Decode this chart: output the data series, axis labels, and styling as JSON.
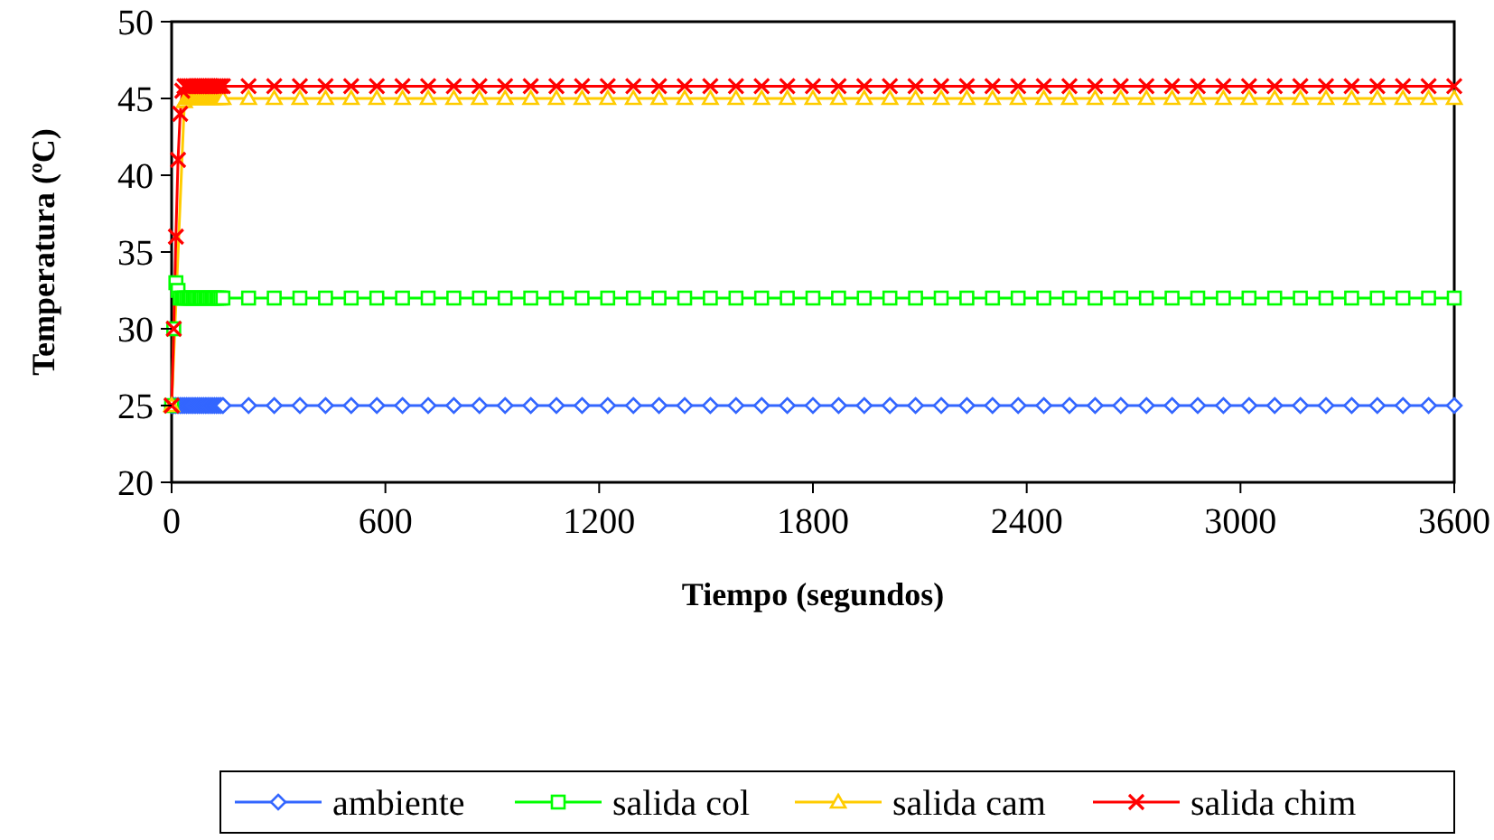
{
  "chart_data": {
    "type": "line",
    "xlabel": "Tiempo (segundos)",
    "ylabel": "Temperatura (ºC)",
    "x": [
      0,
      6,
      12,
      18,
      24,
      30,
      36,
      42,
      48,
      54,
      60,
      66,
      72,
      78,
      84,
      90,
      96,
      102,
      108,
      114,
      120,
      126,
      132,
      138,
      144,
      216,
      288,
      360,
      432,
      504,
      576,
      648,
      720,
      792,
      864,
      936,
      1008,
      1080,
      1152,
      1224,
      1296,
      1368,
      1440,
      1512,
      1584,
      1656,
      1728,
      1800,
      1872,
      1944,
      2016,
      2088,
      2160,
      2232,
      2304,
      2376,
      2448,
      2520,
      2592,
      2664,
      2736,
      2808,
      2880,
      2952,
      3024,
      3096,
      3168,
      3240,
      3312,
      3384,
      3456,
      3528,
      3600
    ],
    "xlim": [
      0,
      3600
    ],
    "xticks": [
      0,
      600,
      1200,
      1800,
      2400,
      3000,
      3600
    ],
    "ylim": [
      20,
      50
    ],
    "yticks": [
      20,
      25,
      30,
      35,
      40,
      45,
      50
    ],
    "grid": false,
    "legend": "bottom",
    "line_style": "solid",
    "series": [
      {
        "name": "ambiente",
        "color": "#3366ff",
        "marker": "diamond",
        "values": [
          25,
          25,
          25,
          25,
          25,
          25,
          25,
          25,
          25,
          25,
          25,
          25,
          25,
          25,
          25,
          25,
          25,
          25,
          25,
          25,
          25,
          25,
          25,
          25,
          25,
          25,
          25,
          25,
          25,
          25,
          25,
          25,
          25,
          25,
          25,
          25,
          25,
          25,
          25,
          25,
          25,
          25,
          25,
          25,
          25,
          25,
          25,
          25,
          25,
          25,
          25,
          25,
          25,
          25,
          25,
          25,
          25,
          25,
          25,
          25,
          25,
          25,
          25,
          25,
          25,
          25,
          25,
          25,
          25,
          25,
          25,
          25,
          25
        ]
      },
      {
        "name": "salida col",
        "color": "#00ff00",
        "marker": "square",
        "values": [
          25,
          30,
          33,
          32.5,
          32,
          32,
          32,
          32,
          32,
          32,
          32,
          32,
          32,
          32,
          32,
          32,
          32,
          32,
          32,
          32,
          32,
          32,
          32,
          32,
          32,
          32,
          32,
          32,
          32,
          32,
          32,
          32,
          32,
          32,
          32,
          32,
          32,
          32,
          32,
          32,
          32,
          32,
          32,
          32,
          32,
          32,
          32,
          32,
          32,
          32,
          32,
          32,
          32,
          32,
          32,
          32,
          32,
          32,
          32,
          32,
          32,
          32,
          32,
          32,
          32,
          32,
          32,
          32,
          32,
          32,
          32,
          32,
          32
        ]
      },
      {
        "name": "salida cam",
        "color": "#ffcc00",
        "marker": "triangle",
        "values": [
          25,
          null,
          null,
          null,
          null,
          null,
          44.8,
          45,
          45,
          45,
          45,
          45,
          45,
          45,
          45,
          45,
          45,
          45,
          45,
          45,
          45,
          45,
          45,
          45,
          45,
          45,
          45,
          45,
          45,
          45,
          45,
          45,
          45,
          45,
          45,
          45,
          45,
          45,
          45,
          45,
          45,
          45,
          45,
          45,
          45,
          45,
          45,
          45,
          45,
          45,
          45,
          45,
          45,
          45,
          45,
          45,
          45,
          45,
          45,
          45,
          45,
          45,
          45,
          45,
          45,
          45,
          45,
          45,
          45,
          45,
          45,
          45,
          45
        ]
      },
      {
        "name": "salida chim",
        "color": "#ff0000",
        "marker": "cross",
        "values": [
          25,
          30,
          36,
          41,
          44,
          45.5,
          45.8,
          45.8,
          45.8,
          45.8,
          45.8,
          45.8,
          45.8,
          45.8,
          45.8,
          45.8,
          45.8,
          45.8,
          45.8,
          45.8,
          45.8,
          45.8,
          45.8,
          45.8,
          45.8,
          45.8,
          45.8,
          45.8,
          45.8,
          45.8,
          45.8,
          45.8,
          45.8,
          45.8,
          45.8,
          45.8,
          45.8,
          45.8,
          45.8,
          45.8,
          45.8,
          45.8,
          45.8,
          45.8,
          45.8,
          45.8,
          45.8,
          45.8,
          45.8,
          45.8,
          45.8,
          45.8,
          45.8,
          45.8,
          45.8,
          45.8,
          45.8,
          45.8,
          45.8,
          45.8,
          45.8,
          45.8,
          45.8,
          45.8,
          45.8,
          45.8,
          45.8,
          45.8,
          45.8,
          45.8,
          45.8,
          45.8,
          45.8
        ]
      }
    ]
  }
}
